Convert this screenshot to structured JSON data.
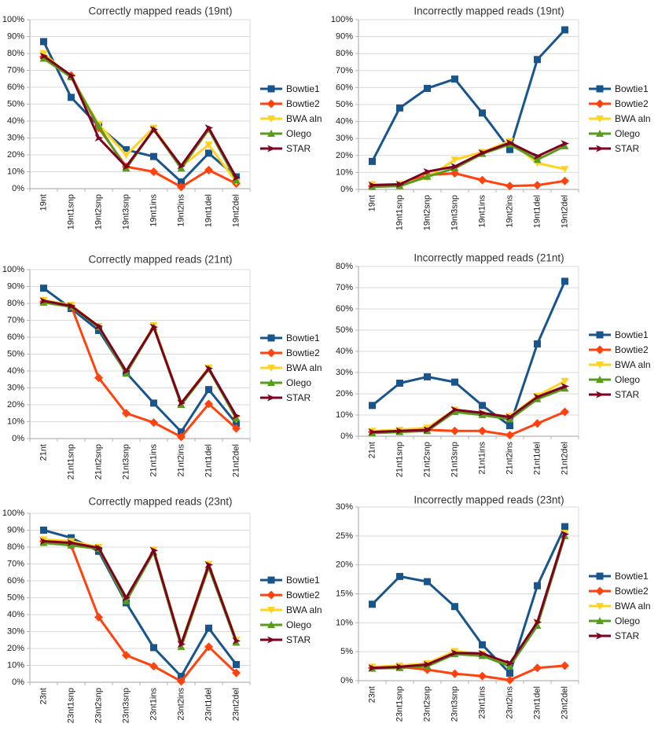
{
  "page": {
    "background": "#ffffff",
    "grid_color": "#d9d9d9",
    "axis_color": "#b3b3b3",
    "text_color": "#1a1a1a"
  },
  "chart_data": [
    {
      "type": "line",
      "title": "Correctly mapped reads (19nt)",
      "categories": [
        "19nt",
        "19nt1snp",
        "19nt2snp",
        "19nt3snp",
        "19nt1ins",
        "19nt2ins",
        "19nt1del",
        "19nt2del"
      ],
      "ylim": [
        0,
        100
      ],
      "ytick_step": 10,
      "ytick_format": "percent",
      "grid": true,
      "legend_position": "right",
      "series": [
        {
          "name": "Bowtie1",
          "color": "#17558C",
          "marker": "square",
          "values": [
            87,
            54,
            37,
            23,
            19,
            4,
            21,
            7
          ]
        },
        {
          "name": "Bowtie2",
          "color": "#FF420E",
          "marker": "diamond",
          "values": [
            78,
            67,
            36,
            13,
            10,
            1,
            11,
            3
          ]
        },
        {
          "name": "BWA aln",
          "color": "#FFD320",
          "marker": "triangle-down",
          "values": [
            80,
            66,
            38,
            20,
            36,
            13,
            26,
            4
          ]
        },
        {
          "name": "Olego",
          "color": "#579D1C",
          "marker": "triangle-up",
          "values": [
            77,
            66,
            37,
            12,
            35,
            12,
            35,
            5
          ]
        },
        {
          "name": "STAR",
          "color": "#7E0021",
          "marker": "arrow-right",
          "values": [
            78.5,
            67,
            30,
            13,
            35,
            13.5,
            36,
            6.5
          ]
        }
      ]
    },
    {
      "type": "line",
      "title": "Incorrectly mapped reads (19nt)",
      "categories": [
        "19nt",
        "19nt1snp",
        "19nt2snp",
        "19nt3snp",
        "19nt1ins",
        "19nt2ins",
        "19nt1del",
        "19nt2del"
      ],
      "ylim": [
        0,
        100
      ],
      "ytick_step": 10,
      "ytick_format": "percent",
      "grid": true,
      "legend_position": "right",
      "series": [
        {
          "name": "Bowtie1",
          "color": "#17558C",
          "marker": "square",
          "values": [
            16.5,
            48,
            59.5,
            65,
            45,
            23.5,
            76.5,
            94
          ]
        },
        {
          "name": "Bowtie2",
          "color": "#FF420E",
          "marker": "diamond",
          "values": [
            2,
            2.5,
            8.5,
            9.5,
            5.5,
            2,
            2.5,
            5
          ]
        },
        {
          "name": "BWA aln",
          "color": "#FFD320",
          "marker": "triangle-down",
          "values": [
            3,
            3,
            7,
            17.5,
            22,
            28.5,
            15.5,
            12
          ]
        },
        {
          "name": "Olego",
          "color": "#579D1C",
          "marker": "triangle-up",
          "values": [
            1.5,
            2,
            7.5,
            12.5,
            21,
            26.5,
            17.5,
            25.5
          ]
        },
        {
          "name": "STAR",
          "color": "#7E0021",
          "marker": "arrow-right",
          "values": [
            2.5,
            3,
            10.5,
            13.5,
            21.5,
            27.5,
            19.5,
            27
          ]
        }
      ]
    },
    {
      "type": "line",
      "title": "Correctly mapped reads (21nt)",
      "categories": [
        "21nt",
        "21nt1snp",
        "21nt2snp",
        "21nt3snp",
        "21nt1ins",
        "21nt2ins",
        "21nt1del",
        "21nt2del"
      ],
      "ylim": [
        0,
        100
      ],
      "ytick_step": 10,
      "ytick_format": "percent",
      "grid": true,
      "legend_position": "right",
      "series": [
        {
          "name": "Bowtie1",
          "color": "#17558C",
          "marker": "square",
          "values": [
            89,
            77,
            64,
            39,
            21,
            4,
            29,
            9
          ]
        },
        {
          "name": "Bowtie2",
          "color": "#FF420E",
          "marker": "diamond",
          "values": [
            81,
            78.5,
            36,
            15,
            9.5,
            1,
            20.5,
            6
          ]
        },
        {
          "name": "BWA aln",
          "color": "#FFD320",
          "marker": "triangle-down",
          "values": [
            82,
            79,
            66.5,
            39,
            67,
            21,
            42,
            11.5
          ]
        },
        {
          "name": "Olego",
          "color": "#579D1C",
          "marker": "triangle-up",
          "values": [
            80.5,
            78,
            66,
            38.5,
            66,
            20,
            41,
            12
          ]
        },
        {
          "name": "STAR",
          "color": "#7E0021",
          "marker": "arrow-right",
          "values": [
            81.5,
            78.5,
            66.5,
            40,
            66,
            21,
            41.5,
            13.5
          ]
        }
      ]
    },
    {
      "type": "line",
      "title": "Incorrectly mapped reads (21nt)",
      "categories": [
        "21nt",
        "21nt1snp",
        "21nt2snp",
        "21nt3snp",
        "21nt1ins",
        "21nt2ins",
        "21nt1del",
        "21nt2del"
      ],
      "ylim": [
        0,
        80
      ],
      "ytick_step": 10,
      "ytick_format": "percent",
      "grid": true,
      "legend_position": "right",
      "series": [
        {
          "name": "Bowtie1",
          "color": "#17558C",
          "marker": "square",
          "values": [
            14.5,
            25,
            28,
            25.5,
            14.5,
            5,
            43.5,
            73
          ]
        },
        {
          "name": "Bowtie2",
          "color": "#FF420E",
          "marker": "diamond",
          "values": [
            2,
            2.5,
            3,
            2.5,
            2.5,
            0.5,
            6,
            11.5
          ]
        },
        {
          "name": "BWA aln",
          "color": "#FFD320",
          "marker": "triangle-down",
          "values": [
            2.5,
            3,
            4,
            12.5,
            10.5,
            9.5,
            19,
            26
          ]
        },
        {
          "name": "Olego",
          "color": "#579D1C",
          "marker": "triangle-up",
          "values": [
            1.5,
            2,
            2.5,
            11.5,
            10,
            8,
            17.5,
            22.5
          ]
        },
        {
          "name": "STAR",
          "color": "#7E0021",
          "marker": "arrow-right",
          "values": [
            2,
            2.5,
            3,
            12.5,
            11,
            9,
            18.5,
            23.5
          ]
        }
      ]
    },
    {
      "type": "line",
      "title": "Correctly mapped reads (23nt)",
      "categories": [
        "23nt",
        "23nt1snp",
        "23nt2snp",
        "23nt3snp",
        "23nt1ins",
        "23nt2ins",
        "23nt1del",
        "23nt2del"
      ],
      "ylim": [
        0,
        100
      ],
      "ytick_step": 10,
      "ytick_format": "percent",
      "grid": true,
      "legend_position": "right",
      "series": [
        {
          "name": "Bowtie1",
          "color": "#17558C",
          "marker": "square",
          "values": [
            90,
            85.5,
            77.5,
            47,
            20.5,
            3.5,
            32,
            10.5
          ]
        },
        {
          "name": "Bowtie2",
          "color": "#FF420E",
          "marker": "diamond",
          "values": [
            83.5,
            81,
            38.5,
            16,
            9.5,
            0.5,
            21,
            5.5
          ]
        },
        {
          "name": "BWA aln",
          "color": "#FFD320",
          "marker": "triangle-down",
          "values": [
            84.5,
            83.5,
            80,
            48.5,
            78.5,
            23,
            70,
            25
          ]
        },
        {
          "name": "Olego",
          "color": "#579D1C",
          "marker": "triangle-up",
          "values": [
            82.5,
            81,
            79,
            48,
            77,
            21,
            68,
            23.5
          ]
        },
        {
          "name": "STAR",
          "color": "#7E0021",
          "marker": "arrow-right",
          "values": [
            83.5,
            82.5,
            79.5,
            50,
            78,
            22.5,
            69.5,
            24.5
          ]
        }
      ]
    },
    {
      "type": "line",
      "title": "Incorrectly mapped reads (23nt)",
      "categories": [
        "23nt",
        "23nt1snp",
        "23nt2snp",
        "23nt3snp",
        "23nt1ins",
        "23nt2ins",
        "23nt1del",
        "23nt2del"
      ],
      "ylim": [
        0,
        30
      ],
      "ytick_step": 5,
      "ytick_format": "percent",
      "grid": true,
      "legend_position": "right",
      "series": [
        {
          "name": "Bowtie1",
          "color": "#17558C",
          "marker": "square",
          "values": [
            13.2,
            18,
            17.1,
            12.8,
            6.2,
            1.3,
            16.4,
            26.6
          ]
        },
        {
          "name": "Bowtie2",
          "color": "#FF420E",
          "marker": "diamond",
          "values": [
            2.2,
            2.4,
            1.9,
            1.2,
            0.8,
            0.1,
            2.2,
            2.6
          ]
        },
        {
          "name": "BWA aln",
          "color": "#FFD320",
          "marker": "triangle-down",
          "values": [
            2.4,
            2.6,
            3,
            5.1,
            4.6,
            2.8,
            9.8,
            25.5
          ]
        },
        {
          "name": "Olego",
          "color": "#579D1C",
          "marker": "triangle-up",
          "values": [
            2.1,
            2.2,
            2.5,
            4.6,
            4.3,
            2.5,
            9.5,
            25
          ]
        },
        {
          "name": "STAR",
          "color": "#7E0021",
          "marker": "arrow-right",
          "values": [
            2.2,
            2.4,
            2.8,
            4.8,
            4.7,
            3,
            10.1,
            25.3
          ]
        }
      ]
    }
  ]
}
